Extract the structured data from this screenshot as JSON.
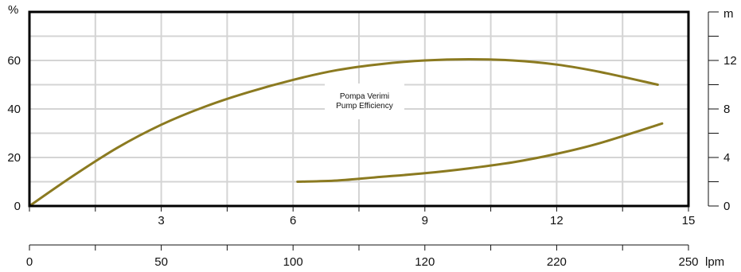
{
  "chart_data": {
    "type": "line",
    "title": "",
    "annotation": [
      "Pompa Verimi",
      "Pump Efficiency"
    ],
    "left_axis": {
      "unit": "%",
      "ticks": [
        0,
        20,
        40,
        60
      ],
      "ylim": [
        0,
        80
      ]
    },
    "right_axis": {
      "unit": "m",
      "ticks": [
        0,
        4,
        8,
        12
      ],
      "ylim": [
        0,
        16
      ]
    },
    "x_axis": {
      "ticks": [
        3,
        6,
        9,
        12,
        15
      ],
      "xlim": [
        0,
        15
      ],
      "grid_step": 1.5
    },
    "flow_axis": {
      "unit": "lpm",
      "tick_labels": [
        "0",
        "50",
        "100",
        "120",
        "220",
        "250"
      ]
    },
    "grid": true,
    "colors": {
      "curve": "#8B7A20",
      "grid": "#d4d4d4",
      "axis": "#111111",
      "frame": "#000000"
    },
    "series": [
      {
        "axis": "left",
        "x": [
          0,
          1,
          2,
          3,
          4,
          5,
          6,
          7,
          8,
          9,
          10,
          11,
          12,
          13,
          14.3
        ],
        "y": [
          0,
          12.5,
          24,
          33.5,
          41,
          47,
          52,
          56,
          58.5,
          60,
          60.5,
          60,
          58.3,
          55.2,
          50
        ]
      },
      {
        "axis": "right",
        "x": [
          6.1,
          7,
          8,
          9,
          10,
          11,
          12,
          13,
          14.4
        ],
        "y": [
          2,
          2.1,
          2.4,
          2.7,
          3.1,
          3.6,
          4.3,
          5.2,
          6.8
        ]
      }
    ]
  }
}
